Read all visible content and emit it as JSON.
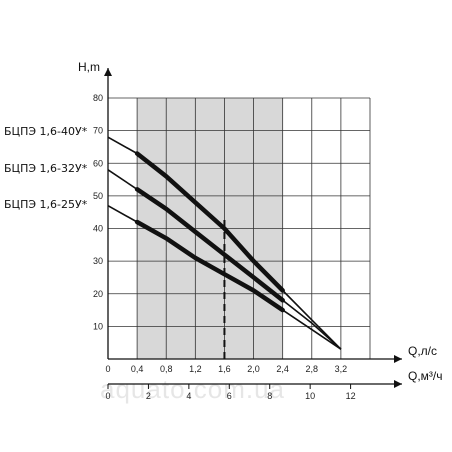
{
  "chart_data": {
    "type": "line",
    "title": "",
    "ylabel": "H,m",
    "xlabel": "Q,л/с",
    "x2label": "Q,м³/ч",
    "xlim": [
      0,
      3.6
    ],
    "ylim": [
      0,
      80
    ],
    "x2lim": [
      0,
      12.96
    ],
    "xticks": [
      "0",
      "0,4",
      "0,8",
      "1,2",
      "1,6",
      "2,0",
      "2,4",
      "2,8",
      "3,2"
    ],
    "xtick_values": [
      0,
      0.4,
      0.8,
      1.2,
      1.6,
      2.0,
      2.4,
      2.8,
      3.2
    ],
    "x2ticks": [
      "0",
      "2",
      "4",
      "6",
      "8",
      "10",
      "12"
    ],
    "x2tick_values": [
      0,
      2,
      4,
      6,
      8,
      10,
      12
    ],
    "yticks": [
      "10",
      "20",
      "30",
      "40",
      "50",
      "60",
      "70",
      "80"
    ],
    "ytick_values": [
      10,
      20,
      30,
      40,
      50,
      60,
      70,
      80
    ],
    "grid": true,
    "working_range": {
      "x": [
        0.4,
        2.4
      ]
    },
    "nominal_flow": 1.6,
    "series": [
      {
        "name": "БЦПЭ 1,6-40У*",
        "x": [
          0,
          0.4,
          0.8,
          1.2,
          1.6,
          2.0,
          2.4,
          2.8,
          3.2
        ],
        "y": [
          68,
          63,
          56,
          48,
          40,
          30,
          21,
          12,
          3
        ]
      },
      {
        "name": "БЦПЭ 1,6-32У*",
        "x": [
          0,
          0.4,
          0.8,
          1.2,
          1.6,
          2.0,
          2.4,
          2.8,
          3.2
        ],
        "y": [
          58,
          52,
          46,
          39,
          32,
          25,
          18,
          11,
          3
        ]
      },
      {
        "name": "БЦПЭ 1,6-25У*",
        "x": [
          0,
          0.4,
          0.8,
          1.2,
          1.6,
          2.0,
          2.4,
          2.8,
          3.2
        ],
        "y": [
          47,
          42,
          37,
          31,
          26,
          21,
          15,
          9,
          3
        ]
      }
    ],
    "watermark": "aquato.com.ua"
  }
}
